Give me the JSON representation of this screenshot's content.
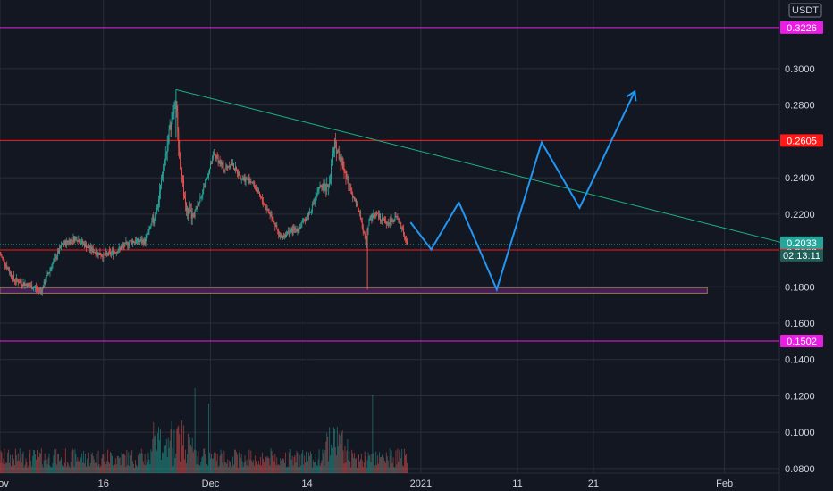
{
  "currency": "USDT",
  "colors": {
    "background": "#131722",
    "grid": "#2a2e39",
    "up": "#26a69a",
    "down": "#ef5350",
    "resistance": "#ff1a1a",
    "magenta": "#e91ee3",
    "zone_fill": "#4a1f5e",
    "trendline": "#1bb380",
    "projection": "#2196f3",
    "price_badge": "#26a69a",
    "axis_text": "#d1d4dc"
  },
  "chart_data": {
    "type": "candlestick",
    "y_axis": {
      "ticks": [
        "0.3000",
        "0.2800",
        "0.2400",
        "0.2200",
        "0.1800",
        "0.1600",
        "0.1400",
        "0.1200",
        "0.1000",
        "0.0800"
      ],
      "ylim": [
        0.0775,
        0.3255
      ]
    },
    "x_axis": {
      "ticks": [
        "Nov",
        "16",
        "Dec",
        "14",
        "2021",
        "11",
        "21",
        "Feb"
      ],
      "tick_days": [
        0,
        30,
        61,
        89,
        122,
        150,
        172,
        210
      ]
    },
    "horizontal_levels": [
      {
        "label": "0.3226",
        "value": 0.3226,
        "color": "#e91ee3"
      },
      {
        "label": "0.2605",
        "value": 0.2605,
        "color": "#ff1a1a"
      },
      {
        "label": "0.2003",
        "value": 0.2003,
        "color": "#ff1a1a"
      },
      {
        "label": "0.1502",
        "value": 0.1502,
        "color": "#e91ee3"
      }
    ],
    "current_price": {
      "label": "0.2033",
      "value": 0.2033,
      "countdown": "02:13:11"
    },
    "support_zone": {
      "from_value": 0.1765,
      "to_value": 0.1795,
      "day_end": 205
    },
    "trendline": {
      "start": {
        "day": 51,
        "value": 0.2885
      },
      "end": {
        "day": 230,
        "value": 0.2027
      }
    },
    "projection": [
      {
        "day": 119,
        "value": 0.2155
      },
      {
        "day": 125,
        "value": 0.2005
      },
      {
        "day": 133,
        "value": 0.2265
      },
      {
        "day": 144,
        "value": 0.1785
      },
      {
        "day": 157,
        "value": 0.2595
      },
      {
        "day": 168,
        "value": 0.2235
      },
      {
        "day": 184,
        "value": 0.2875
      }
    ],
    "price_path": [
      [
        0,
        0.198
      ],
      [
        4,
        0.184
      ],
      [
        8,
        0.181
      ],
      [
        12,
        0.178
      ],
      [
        15,
        0.192
      ],
      [
        18,
        0.203
      ],
      [
        22,
        0.207
      ],
      [
        26,
        0.201
      ],
      [
        30,
        0.197
      ],
      [
        34,
        0.2
      ],
      [
        38,
        0.205
      ],
      [
        42,
        0.205
      ],
      [
        45,
        0.22
      ],
      [
        47,
        0.24
      ],
      [
        49,
        0.265
      ],
      [
        51,
        0.282
      ],
      [
        52,
        0.25
      ],
      [
        54,
        0.222
      ],
      [
        56,
        0.218
      ],
      [
        60,
        0.24
      ],
      [
        62,
        0.253
      ],
      [
        65,
        0.245
      ],
      [
        67,
        0.248
      ],
      [
        70,
        0.24
      ],
      [
        73,
        0.238
      ],
      [
        76,
        0.227
      ],
      [
        79,
        0.218
      ],
      [
        81,
        0.207
      ],
      [
        84,
        0.21
      ],
      [
        87,
        0.213
      ],
      [
        90,
        0.222
      ],
      [
        93,
        0.236
      ],
      [
        95,
        0.233
      ],
      [
        97,
        0.258
      ],
      [
        99,
        0.25
      ],
      [
        101,
        0.236
      ],
      [
        104,
        0.222
      ],
      [
        106,
        0.205
      ],
      [
        107,
        0.218
      ],
      [
        109,
        0.22
      ],
      [
        112,
        0.215
      ],
      [
        115,
        0.218
      ],
      [
        117,
        0.21
      ],
      [
        118,
        0.2033
      ]
    ],
    "volume_axis": {
      "min": 0.0775,
      "unit_per_step": 0.0007
    }
  }
}
